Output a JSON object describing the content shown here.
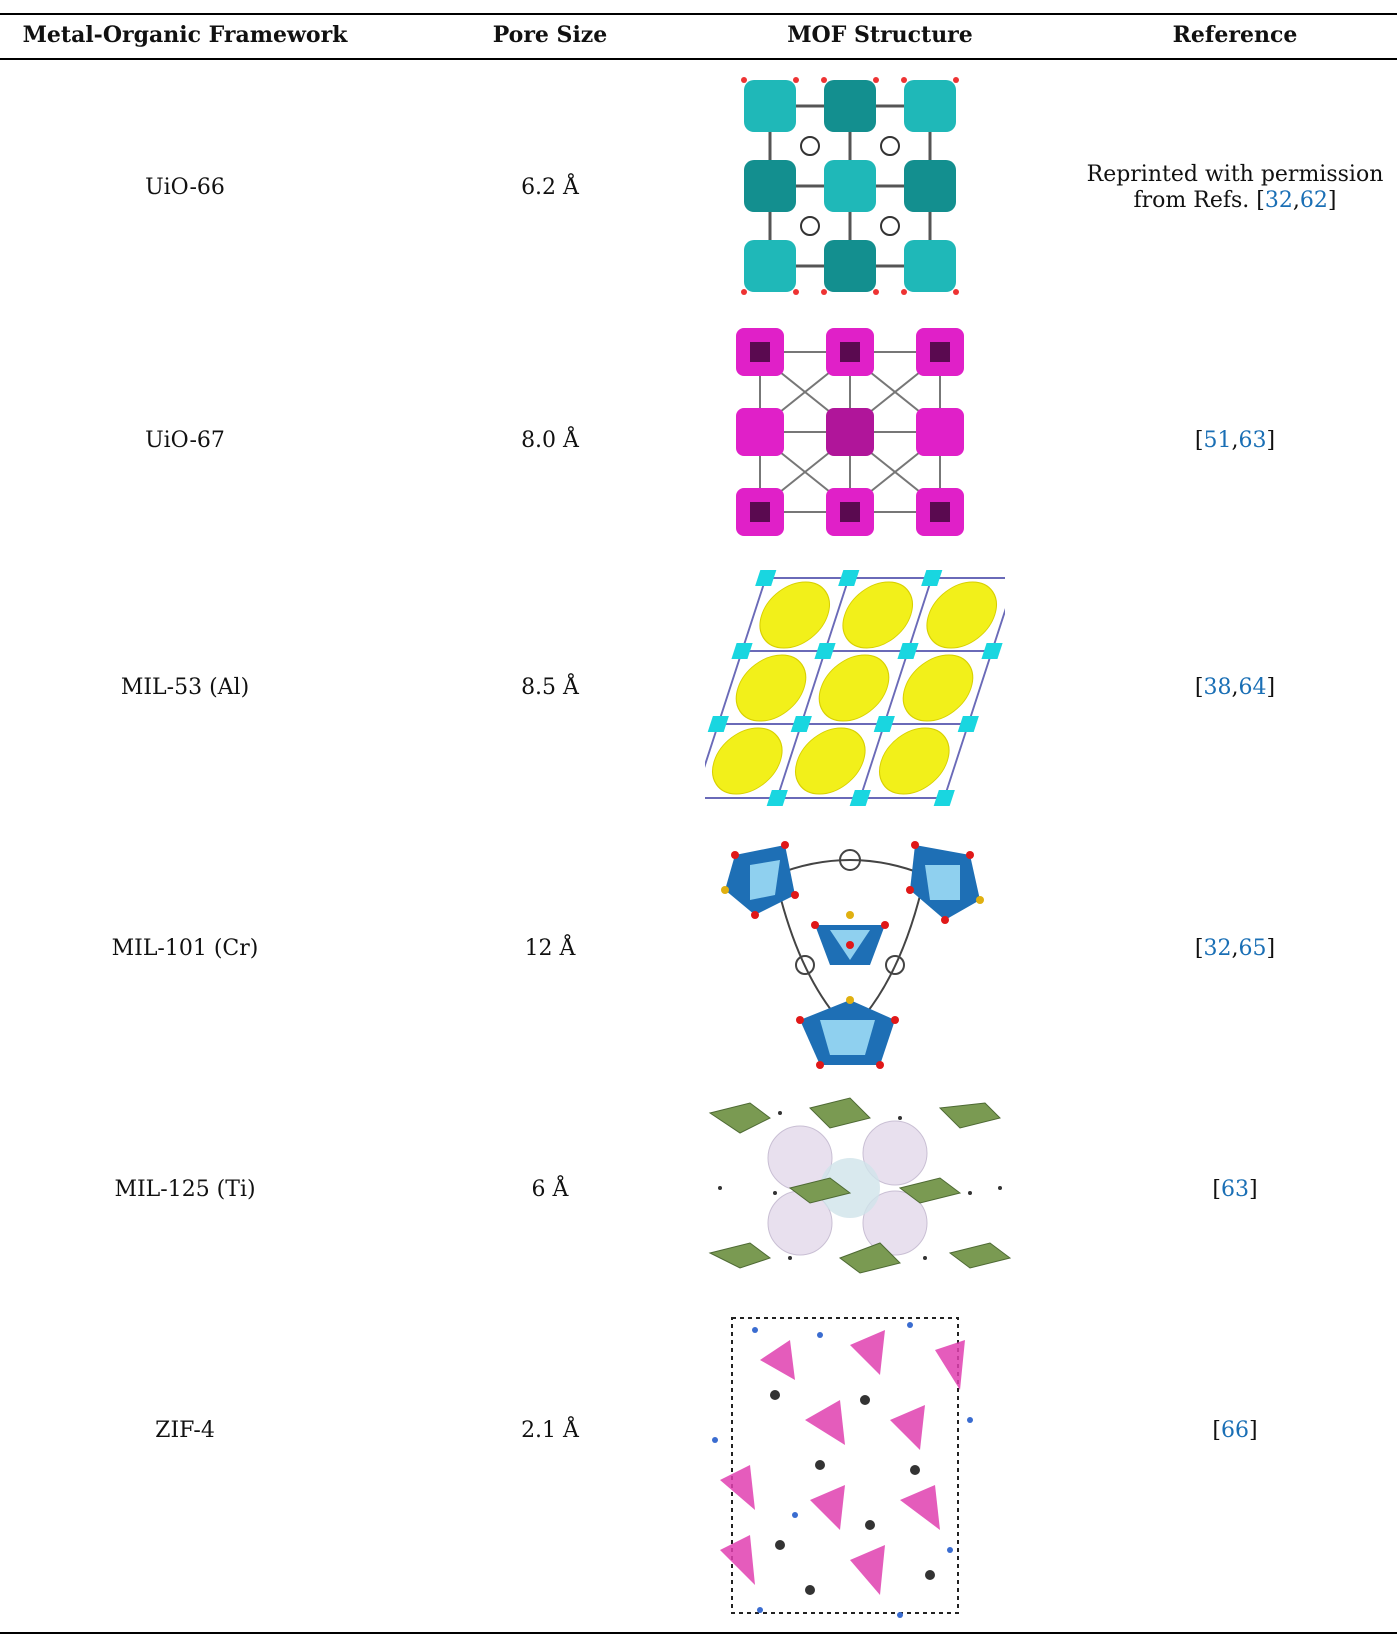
{
  "table": {
    "headers": [
      "Metal-Organic Framework",
      "Pore Size",
      "MOF Structure",
      "Reference"
    ],
    "rows": [
      {
        "mof": "UiO-66",
        "pore": "6.2 Å",
        "structure_icon": "uio-66-structure",
        "ref_prefix": "Reprinted with permission",
        "ref_line2": "from Refs. ",
        "refs": [
          "32",
          "62"
        ]
      },
      {
        "mof": "UiO-67",
        "pore": "8.0 Å",
        "structure_icon": "uio-67-structure",
        "refs": [
          "51",
          "63"
        ]
      },
      {
        "mof": "MIL-53 (Al)",
        "pore": "8.5 Å",
        "structure_icon": "mil-53-structure",
        "refs": [
          "38",
          "64"
        ]
      },
      {
        "mof": "MIL-101 (Cr)",
        "pore": "12 Å",
        "structure_icon": "mil-101-structure",
        "refs": [
          "32",
          "65"
        ]
      },
      {
        "mof": "MIL-125 (Ti)",
        "pore": "6 Å",
        "structure_icon": "mil-125-structure",
        "refs": [
          "63"
        ]
      },
      {
        "mof": "ZIF-4",
        "pore": "2.1 Å",
        "structure_icon": "zif-4-structure",
        "refs": [
          "66"
        ]
      }
    ]
  },
  "colors": {
    "link": "#1a6fb5",
    "uio66_cluster": "#1fb8b8",
    "uio67_cluster": "#e020c8",
    "mil53_sphere": "#f2f01a",
    "mil53_node": "#19d6e0",
    "mil101_poly": "#1e6fb5",
    "mil125_poly": "#7a9a52",
    "zif4_poly": "#e040b0"
  }
}
